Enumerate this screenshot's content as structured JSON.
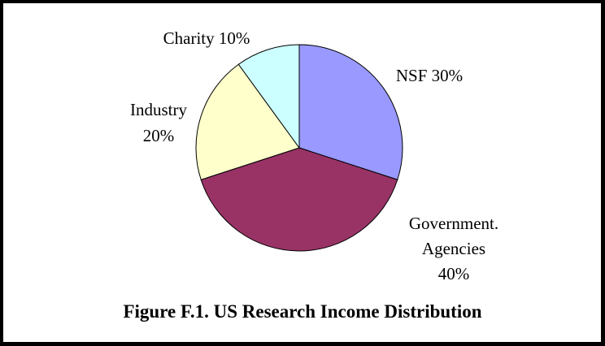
{
  "chart_data": {
    "type": "pie",
    "title": "Figure F.1. US Research Income Distribution",
    "slices": [
      {
        "label": "NSF",
        "value": 30,
        "color": "#9999ff",
        "label_lines": [
          "NSF 30%"
        ]
      },
      {
        "label": "Government. Agencies",
        "value": 40,
        "color": "#993366",
        "label_lines": [
          "Government.",
          "Agencies",
          "40%"
        ]
      },
      {
        "label": "Industry",
        "value": 20,
        "color": "#ffffcc",
        "label_lines": [
          "Industry",
          "20%"
        ]
      },
      {
        "label": "Charity",
        "value": 10,
        "color": "#ccffff",
        "label_lines": [
          "Charity 10%"
        ]
      }
    ],
    "start_angle": "12 o'clock",
    "direction": "clockwise"
  }
}
